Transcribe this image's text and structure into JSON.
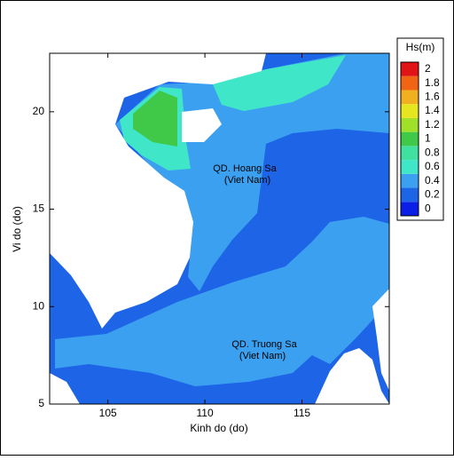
{
  "chart_data": {
    "type": "contour",
    "xlabel": "Kinh do (do)",
    "ylabel": "Vi do (do)",
    "xlim": [
      102,
      119.5
    ],
    "ylim": [
      5,
      23
    ],
    "xticks": [
      105,
      110,
      115
    ],
    "yticks": [
      5,
      10,
      15,
      20
    ],
    "colorbar": {
      "title": "Hs(m)",
      "levels": [
        0,
        0.2,
        0.4,
        0.6,
        0.8,
        1,
        1.2,
        1.4,
        1.6,
        1.8,
        2
      ],
      "colors": [
        "#0a1ee6",
        "#1e64e6",
        "#3ca0f0",
        "#40e6c8",
        "#40e0a0",
        "#40c848",
        "#a0e028",
        "#e6e620",
        "#f0b020",
        "#f06414",
        "#e01414"
      ]
    },
    "annotations": [
      "QD. Hoang Sa",
      "(Viet Nam)",
      "QD. Truong Sa",
      "(Viet Nam)"
    ]
  }
}
